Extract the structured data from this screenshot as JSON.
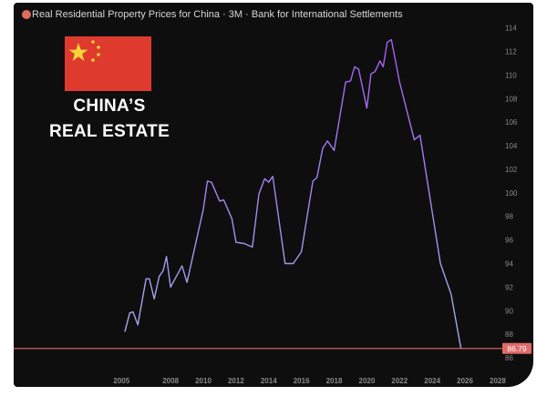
{
  "header": {
    "title": "Real Residential Property Prices for China · 3M · Bank for International Settlements"
  },
  "overlay": {
    "line1": "CHINA’S",
    "line2": "REAL ESTATE",
    "flag_icon": "china-flag"
  },
  "colors": {
    "background": "#0e0e0f",
    "line_low": "#9fb0e8",
    "line_high": "#a55cf0",
    "price_line": "#e06a6a",
    "flag_red": "#de3a2e",
    "flag_star": "#f5d33a"
  },
  "chart_data": {
    "type": "line",
    "title": "Real Residential Property Prices for China · 3M · Bank for International Settlements",
    "xlabel": "",
    "ylabel": "",
    "xlim": [
      2003,
      2029
    ],
    "ylim": [
      85,
      115
    ],
    "x_ticks": [
      "2005",
      "2008",
      "2010",
      "2012",
      "2014",
      "2016",
      "2018",
      "2020",
      "2022",
      "2024",
      "2026",
      "2028"
    ],
    "y_ticks": [
      "114",
      "112",
      "110",
      "108",
      "106",
      "104",
      "102",
      "100",
      "98",
      "96",
      "94",
      "92",
      "90",
      "88",
      "86"
    ],
    "grid": false,
    "last_value_label": "86.79",
    "last_value": 86.79,
    "series": [
      {
        "x": [
          2005.2,
          2005.5,
          2005.7,
          2006.0,
          2006.5,
          2006.7,
          2007.0,
          2007.3,
          2007.55,
          2007.75,
          2008.0,
          2008.35,
          2008.7,
          2009.0,
          2010.0,
          2010.25,
          2010.5,
          2011.0,
          2011.25,
          2011.75,
          2012.0,
          2012.5,
          2013.0,
          2013.4,
          2013.75,
          2014.0,
          2014.25,
          2015.0,
          2015.5,
          2016.0,
          2016.7,
          2016.95,
          2017.3,
          2017.6,
          2018.0,
          2018.7,
          2019.0,
          2019.25,
          2019.5,
          2020.0,
          2020.25,
          2020.5,
          2020.8,
          2021.0,
          2021.25,
          2021.5,
          2022.0,
          2022.9,
          2023.25,
          2024.5,
          2025.15,
          2025.75
        ],
        "values": [
          88.2,
          89.8,
          89.9,
          88.8,
          92.7,
          92.7,
          91.0,
          92.9,
          93.4,
          94.6,
          92.0,
          92.9,
          93.8,
          92.4,
          98.6,
          101.0,
          100.9,
          99.3,
          99.4,
          97.8,
          95.8,
          95.7,
          95.4,
          99.9,
          101.2,
          100.9,
          101.4,
          94.0,
          94.0,
          95.0,
          101.0,
          101.3,
          103.8,
          104.4,
          103.6,
          109.4,
          109.5,
          110.7,
          110.5,
          107.2,
          110.1,
          110.3,
          111.2,
          110.7,
          112.8,
          113.0,
          109.4,
          104.5,
          104.9,
          94.0,
          91.4,
          86.79
        ]
      }
    ]
  }
}
